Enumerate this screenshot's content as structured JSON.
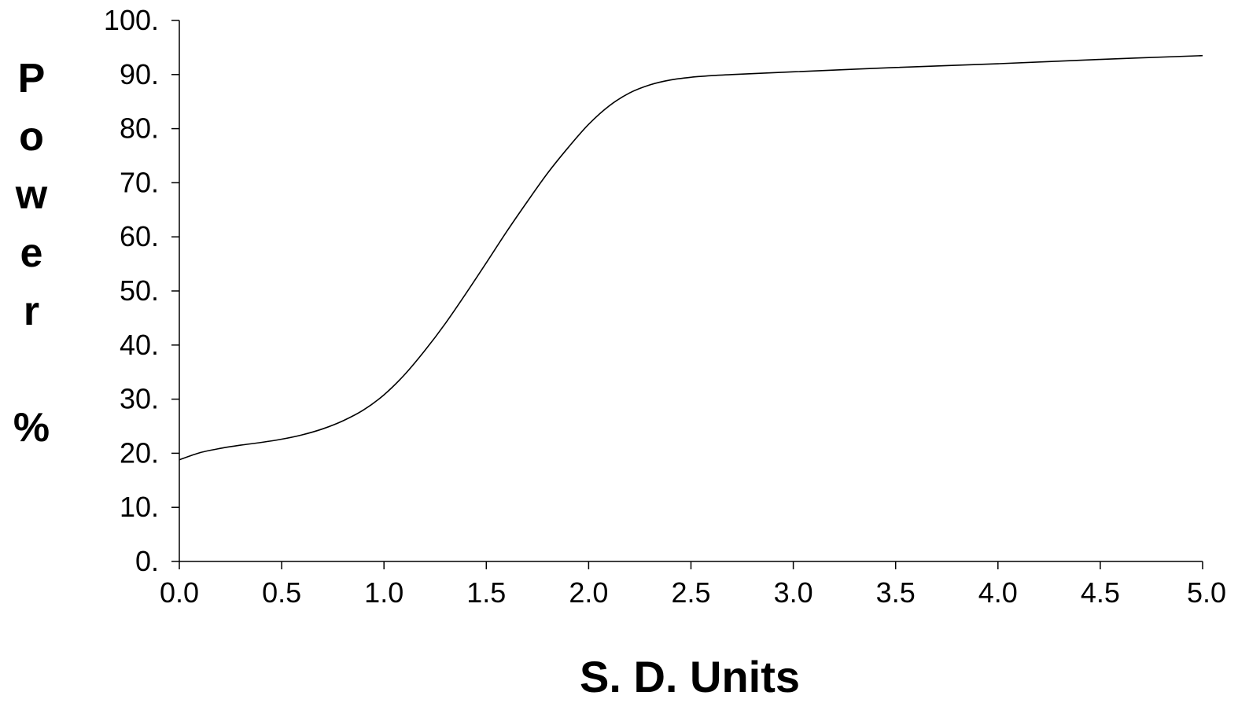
{
  "chart_data": {
    "type": "line",
    "title": "",
    "xlabel": "S. D. Units",
    "ylabel": "Power %",
    "ylabel_lines": [
      "P",
      "o",
      "w",
      "e",
      "r",
      "",
      "%"
    ],
    "xlim": [
      0.0,
      5.0
    ],
    "ylim": [
      0,
      100
    ],
    "x_ticks": [
      0.0,
      0.5,
      1.0,
      1.5,
      2.0,
      2.5,
      3.0,
      3.5,
      4.0,
      4.5,
      5.0
    ],
    "x_tick_labels": [
      "0.0",
      "0.5",
      "1.0",
      "1.5",
      "2.0",
      "2.5",
      "3.0",
      "3.5",
      "4.0",
      "4.5",
      "5.0"
    ],
    "y_ticks": [
      0,
      10,
      20,
      30,
      40,
      50,
      60,
      70,
      80,
      90,
      100
    ],
    "y_tick_labels": [
      "0.",
      "10.",
      "20.",
      "30.",
      "40.",
      "50.",
      "60.",
      "70.",
      "80.",
      "90.",
      "100."
    ],
    "grid": false,
    "series": [
      {
        "x": [
          0.0,
          0.1,
          0.2,
          0.3,
          0.4,
          0.5,
          0.6,
          0.7,
          0.8,
          0.9,
          1.0,
          1.1,
          1.2,
          1.3,
          1.4,
          1.5,
          1.6,
          1.7,
          1.8,
          1.9,
          2.0,
          2.1,
          2.2,
          2.3,
          2.4,
          2.5,
          2.6,
          2.7,
          3.0,
          3.5,
          4.0,
          4.5,
          5.0
        ],
        "y": [
          18.8,
          20.1,
          20.9,
          21.5,
          22.0,
          22.6,
          23.4,
          24.5,
          26.0,
          28.0,
          30.8,
          34.5,
          39.0,
          44.0,
          49.5,
          55.2,
          61.0,
          66.5,
          71.8,
          76.5,
          80.8,
          84.2,
          86.6,
          88.1,
          89.0,
          89.5,
          89.8,
          90.0,
          90.5,
          91.3,
          92.0,
          92.8,
          93.5
        ]
      }
    ]
  }
}
